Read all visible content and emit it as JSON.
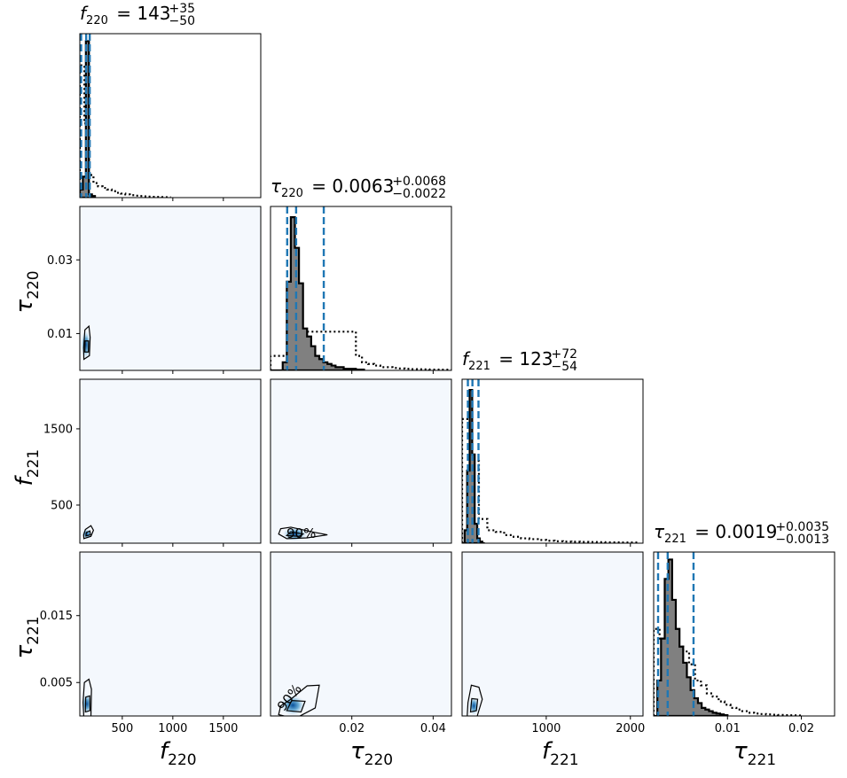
{
  "figure": {
    "type": "corner-plot",
    "percent_label": "90%"
  },
  "colors": {
    "posterior_fill": "#808080",
    "quantile_line": "#1f77b4",
    "density_light": "#f4f8fd",
    "density_mid": "#6baed6",
    "density_dark": "#08519c"
  },
  "titles": [
    {
      "sym": "f",
      "sub": "220",
      "val": "= 143",
      "sup": "+35",
      "inf": "−50"
    },
    {
      "sym": "τ",
      "sub": "220",
      "val": "= 0.0063",
      "sup": "+0.0068",
      "inf": "−0.0022"
    },
    {
      "sym": "f",
      "sub": "221",
      "val": "= 123",
      "sup": "+72",
      "inf": "−54"
    },
    {
      "sym": "τ",
      "sub": "221",
      "val": "= 0.0019",
      "sup": "+0.0035",
      "inf": "−0.0013"
    }
  ],
  "axis_labels": [
    {
      "sym": "f",
      "sub": "220"
    },
    {
      "sym": "τ",
      "sub": "220"
    },
    {
      "sym": "f",
      "sub": "221"
    },
    {
      "sym": "τ",
      "sub": "221"
    }
  ],
  "chart_data": {
    "type": "corner",
    "parameters": [
      "f_220",
      "tau_220",
      "f_221",
      "tau_221"
    ],
    "ranges": [
      [
        80,
        1870
      ],
      [
        0.0,
        0.0445
      ],
      [
        0,
        2150
      ],
      [
        0.0,
        0.0245
      ]
    ],
    "ticks": [
      [
        "500",
        "1000",
        "1500"
      ],
      [
        "0.02",
        "0.04"
      ],
      [
        "1000",
        "2000"
      ],
      [
        "0.01",
        "0.02"
      ]
    ],
    "ytick_labels": [
      null,
      [
        "0.01",
        "0.03"
      ],
      [
        "500",
        "1500"
      ],
      [
        "0.005",
        "0.015"
      ]
    ],
    "tick_values": [
      [
        500,
        1000,
        1500
      ],
      [
        0.02,
        0.04
      ],
      [
        1000,
        2000
      ],
      [
        0.01,
        0.02
      ]
    ],
    "ytick_values": [
      null,
      [
        0.01,
        0.03
      ],
      [
        500,
        1500
      ],
      [
        0.005,
        0.015
      ]
    ],
    "quantiles": [
      [
        93,
        143,
        178
      ],
      [
        0.0041,
        0.0063,
        0.0131
      ],
      [
        69,
        123,
        195
      ],
      [
        0.0006,
        0.0019,
        0.0054
      ]
    ],
    "histograms": [
      {
        "bins": [
          80,
          110,
          140,
          170,
          200,
          230
        ],
        "posterior": [
          0.05,
          0.13,
          0.97,
          0.02,
          0.01
        ],
        "prior": [
          0.82,
          0.46,
          0.14,
          0.09,
          0.07,
          0.06,
          0.05,
          0.04,
          0.03,
          0.025,
          0.02,
          0.015,
          0.012,
          0.01,
          0.008,
          0.006,
          0.005,
          0.004,
          0.003,
          0.002
        ],
        "prior_start": 80,
        "prior_step": 45
      },
      {
        "bins": [
          0.0,
          0.001,
          0.002,
          0.003,
          0.004,
          0.005,
          0.006,
          0.007,
          0.008,
          0.009,
          0.01,
          0.011,
          0.012,
          0.013,
          0.014,
          0.015,
          0.016,
          0.017,
          0.018,
          0.019,
          0.02,
          0.021,
          0.022,
          0.023
        ],
        "posterior": [
          0.0,
          0.0,
          0.0,
          0.05,
          0.55,
          0.95,
          0.76,
          0.54,
          0.26,
          0.21,
          0.15,
          0.09,
          0.07,
          0.05,
          0.04,
          0.03,
          0.02,
          0.02,
          0.01,
          0.01,
          0.01,
          0.005,
          0.005
        ],
        "prior": [
          0.09,
          0.09,
          0.09,
          0.24,
          0.24,
          0.24,
          0.24,
          0.24,
          0.24,
          0.24,
          0.24,
          0.24,
          0.24,
          0.24,
          0.09,
          0.05,
          0.04,
          0.03,
          0.02,
          0.02,
          0.015,
          0.012,
          0.01,
          0.008,
          0.007,
          0.006,
          0.005,
          0.005,
          0.004,
          0.004
        ],
        "prior_start": 0.0,
        "prior_step": 0.0015
      },
      {
        "bins": [
          0,
          30,
          60,
          90,
          120,
          150,
          180,
          210,
          240,
          270
        ],
        "posterior": [
          0.0,
          0.08,
          0.45,
          0.95,
          0.55,
          0.12,
          0.03,
          0.01,
          0.0
        ],
        "prior": [
          0.77,
          0.51,
          0.15,
          0.08,
          0.07,
          0.05,
          0.04,
          0.03,
          0.025,
          0.02,
          0.015,
          0.012,
          0.01,
          0.009,
          0.008,
          0.007,
          0.006,
          0.005,
          0.005,
          0.004,
          0.004
        ],
        "prior_start": 0,
        "prior_step": 100
      },
      {
        "bins": [
          0.0,
          0.0005,
          0.001,
          0.0015,
          0.002,
          0.0025,
          0.003,
          0.0035,
          0.004,
          0.0045,
          0.005,
          0.0055,
          0.006,
          0.0065,
          0.007,
          0.0075,
          0.008,
          0.0085,
          0.009,
          0.0095,
          0.01
        ],
        "posterior": [
          0.0,
          0.22,
          0.48,
          0.85,
          0.97,
          0.72,
          0.54,
          0.43,
          0.33,
          0.24,
          0.16,
          0.11,
          0.08,
          0.05,
          0.04,
          0.03,
          0.02,
          0.015,
          0.01,
          0.005
        ],
        "prior": [
          0.54,
          0.48,
          0.46,
          0.45,
          0.43,
          0.4,
          0.32,
          0.22,
          0.19,
          0.14,
          0.12,
          0.09,
          0.07,
          0.05,
          0.04,
          0.03,
          0.02,
          0.015,
          0.012,
          0.01,
          0.008,
          0.006,
          0.005,
          0.004,
          0.003
        ],
        "prior_start": 0.0,
        "prior_step": 0.0008
      }
    ],
    "density_peaks": [
      {
        "row": 1,
        "col": 0,
        "x": 140,
        "y": 0.007,
        "sx": 18,
        "sy": 0.0025,
        "c90": [
          [
            120,
            0.003
          ],
          [
            175,
            0.004
          ],
          [
            182,
            0.009
          ],
          [
            170,
            0.012
          ],
          [
            130,
            0.011
          ],
          [
            118,
            0.006
          ]
        ],
        "c50": [
          [
            130,
            0.005
          ],
          [
            165,
            0.005
          ],
          [
            166,
            0.008
          ],
          [
            132,
            0.008
          ]
        ]
      },
      {
        "row": 2,
        "col": 0,
        "x": 150,
        "y": 120,
        "sx": 30,
        "sy": 40,
        "c90": [
          [
            120,
            60
          ],
          [
            190,
            90
          ],
          [
            215,
            170
          ],
          [
            190,
            230
          ],
          [
            135,
            180
          ],
          [
            118,
            110
          ]
        ],
        "c50": [
          [
            140,
            95
          ],
          [
            185,
            110
          ],
          [
            180,
            160
          ],
          [
            145,
            140
          ]
        ]
      },
      {
        "row": 2,
        "col": 1,
        "x": 0.006,
        "y": 120,
        "sx": 0.002,
        "sy": 60,
        "c90": [
          [
            0.002,
            120
          ],
          [
            0.004,
            60
          ],
          [
            0.009,
            70
          ],
          [
            0.014,
            110
          ],
          [
            0.011,
            140
          ],
          [
            0.005,
            210
          ],
          [
            0.0025,
            190
          ]
        ],
        "c50": [
          [
            0.004,
            100
          ],
          [
            0.007,
            90
          ],
          [
            0.008,
            120
          ],
          [
            0.005,
            150
          ]
        ]
      },
      {
        "row": 3,
        "col": 0,
        "x": 150,
        "y": 0.0018,
        "sx": 20,
        "sy": 0.001,
        "c90": [
          [
            120,
            -0.0003
          ],
          [
            190,
            0.0
          ],
          [
            195,
            0.004
          ],
          [
            170,
            0.0055
          ],
          [
            125,
            0.005
          ],
          [
            112,
            0.002
          ]
        ],
        "c50": [
          [
            135,
            0.0006
          ],
          [
            180,
            0.0008
          ],
          [
            178,
            0.003
          ],
          [
            138,
            0.0028
          ]
        ]
      },
      {
        "row": 3,
        "col": 1,
        "x": 0.0055,
        "y": 0.0016,
        "sx": 0.002,
        "sy": 0.001,
        "c90": [
          [
            0.002,
            0.0002
          ],
          [
            0.006,
            -0.0004
          ],
          [
            0.011,
            0.0012
          ],
          [
            0.012,
            0.0046
          ],
          [
            0.009,
            0.0045
          ],
          [
            0.005,
            0.0025
          ],
          [
            0.0025,
            0.0015
          ]
        ],
        "c50": [
          [
            0.004,
            0.0008
          ],
          [
            0.0075,
            0.0006
          ],
          [
            0.0085,
            0.0022
          ],
          [
            0.0052,
            0.0023
          ]
        ]
      },
      {
        "row": 3,
        "col": 2,
        "x": 140,
        "y": 0.0015,
        "sx": 40,
        "sy": 0.0009,
        "c90": [
          [
            60,
            -0.0002
          ],
          [
            180,
            0.0
          ],
          [
            240,
            0.0025
          ],
          [
            200,
            0.0043
          ],
          [
            110,
            0.0046
          ],
          [
            70,
            0.002
          ]
        ],
        "c50": [
          [
            100,
            0.0006
          ],
          [
            170,
            0.0008
          ],
          [
            185,
            0.0025
          ],
          [
            115,
            0.0026
          ]
        ]
      }
    ]
  }
}
